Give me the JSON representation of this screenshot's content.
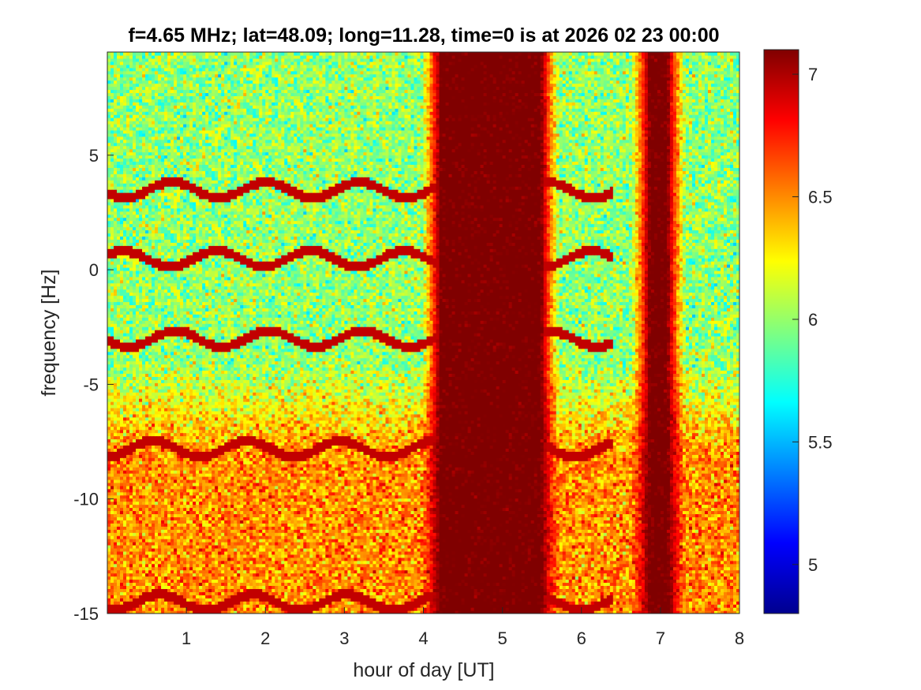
{
  "chart_data": {
    "type": "heatmap",
    "title": "f=4.65 MHz;  lat=48.09; long=11.28, time=0 is at 2026 02 23 00:00",
    "xlabel": "hour of day [UT]",
    "ylabel": "frequency [Hz]",
    "xlim": [
      0,
      8
    ],
    "ylim": [
      -15,
      9.5
    ],
    "xticks": [
      1,
      2,
      3,
      4,
      5,
      6,
      7,
      8
    ],
    "yticks": [
      -15,
      -10,
      -5,
      0,
      5
    ],
    "colormap": "jet",
    "clim": [
      4.8,
      7.1
    ],
    "colorbar_ticks": [
      5,
      5.5,
      6,
      6.5,
      7
    ],
    "background_level": 6.0,
    "low_frequency_level": 6.5,
    "saturated_bands_hours": [
      [
        4.1,
        5.6
      ],
      [
        6.75,
        7.2
      ]
    ],
    "trace_frequencies_hz": [
      3.5,
      0.5,
      -3.0,
      -7.8,
      -14.5
    ]
  }
}
